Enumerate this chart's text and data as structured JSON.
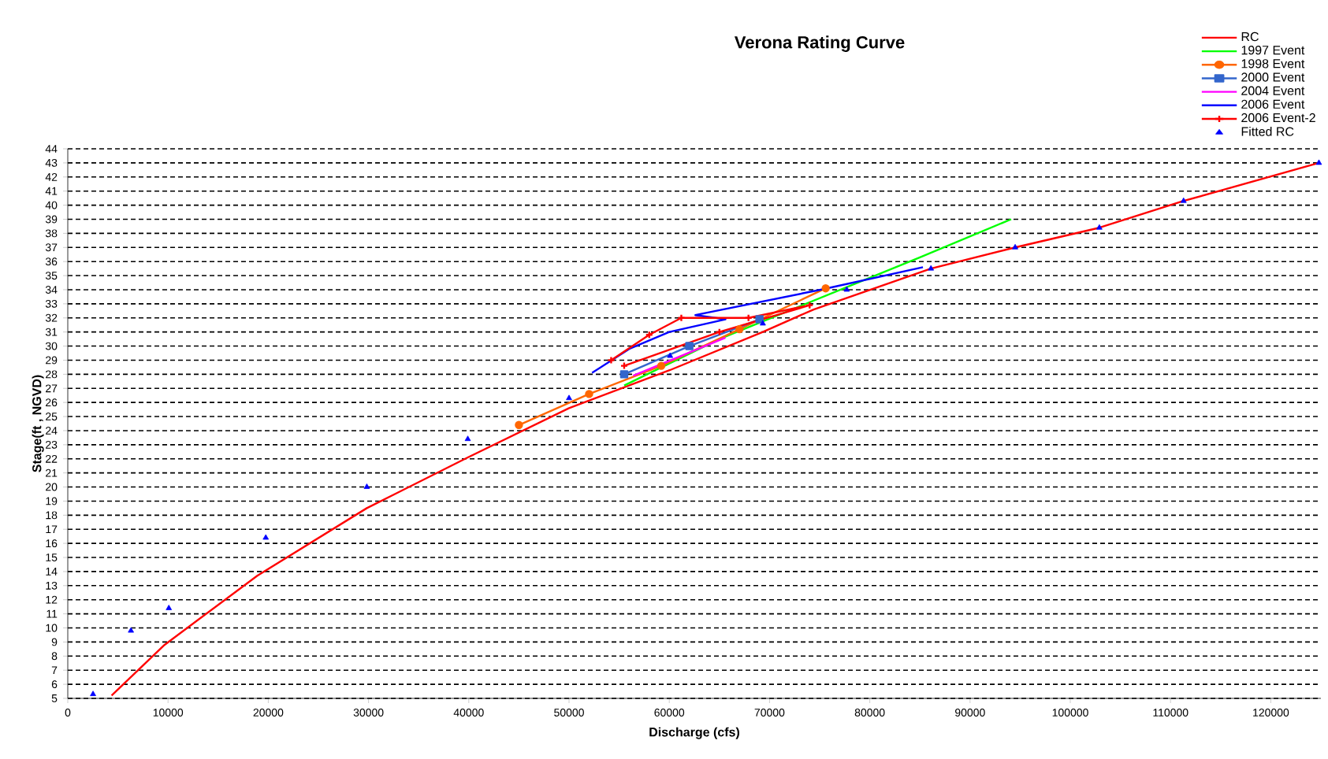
{
  "chart_data": {
    "type": "line",
    "title": "Verona Rating Curve",
    "xlabel": "Discharge (cfs)",
    "ylabel": "Stage(ft , NGVD)",
    "xlim": [
      0,
      125000
    ],
    "ylim": [
      5,
      44
    ],
    "xticks": [
      0,
      10000,
      20000,
      30000,
      40000,
      50000,
      60000,
      70000,
      80000,
      90000,
      100000,
      110000,
      120000
    ],
    "yticks": [
      5,
      6,
      7,
      8,
      9,
      10,
      11,
      12,
      13,
      14,
      15,
      16,
      17,
      18,
      19,
      20,
      21,
      22,
      23,
      24,
      25,
      26,
      27,
      28,
      29,
      30,
      31,
      32,
      33,
      34,
      35,
      36,
      37,
      38,
      39,
      40,
      41,
      42,
      43,
      44
    ],
    "grid": "y",
    "legend": "top right",
    "series": [
      {
        "name": "RC",
        "color": "#ff0000",
        "marker": "none",
        "x": [
          4370,
          9660,
          18900,
          29830,
          39900,
          50000,
          60080,
          69330,
          74400,
          86100,
          94500,
          102900,
          111300,
          124800
        ],
        "values": [
          5.2,
          8.8,
          13.7,
          18.5,
          22.1,
          25.6,
          28.3,
          31.0,
          32.6,
          35.5,
          37.0,
          38.4,
          40.3,
          43.0
        ]
      },
      {
        "name": "1997 Event",
        "color": "#00ff00",
        "marker": "none",
        "x": [
          55500,
          65000,
          75000,
          85000,
          94100
        ],
        "values": [
          27.2,
          30.5,
          33.4,
          36.3,
          39.0
        ]
      },
      {
        "name": "1998 Event",
        "color": "#ff6600",
        "marker": "circle",
        "x": [
          45000,
          52000,
          59200,
          67000,
          75600
        ],
        "values": [
          24.4,
          26.6,
          28.6,
          31.2,
          34.1
        ]
      },
      {
        "name": "2000 Event",
        "color": "#3366cc",
        "marker": "square",
        "x": [
          55500,
          62000,
          69000
        ],
        "values": [
          28.0,
          30.0,
          31.9
        ]
      },
      {
        "name": "2004 Event",
        "color": "#ff00ff",
        "marker": "none",
        "x": [
          56400,
          65600
        ],
        "values": [
          27.9,
          30.6
        ]
      },
      {
        "name": "2006 Event",
        "color": "#0000ff",
        "marker": "none",
        "x": [
          52300,
          56000,
          60000,
          65600,
          62600,
          75100,
          85300
        ],
        "values": [
          28.1,
          29.8,
          31.0,
          31.9,
          32.2,
          34.0,
          35.6
        ]
      },
      {
        "name": "2006 Event-2",
        "color": "#ff0000",
        "marker": "cross",
        "x": [
          54200,
          58000,
          61200,
          67900,
          74000,
          65000,
          55500
        ],
        "values": [
          29.0,
          30.8,
          32.0,
          32.0,
          32.9,
          31.0,
          28.6
        ]
      },
      {
        "name": "Fitted RC",
        "color": "#0000ff",
        "type": "scatter",
        "marker": "triangle",
        "x": [
          2520,
          6300,
          10080,
          19750,
          29830,
          39900,
          50000,
          60080,
          69330,
          77700,
          86100,
          94500,
          102900,
          111300,
          124800
        ],
        "values": [
          5.3,
          9.8,
          11.4,
          16.4,
          20.0,
          23.4,
          26.3,
          29.3,
          31.6,
          34.0,
          35.5,
          37.0,
          38.4,
          40.3,
          43.0
        ]
      }
    ]
  }
}
